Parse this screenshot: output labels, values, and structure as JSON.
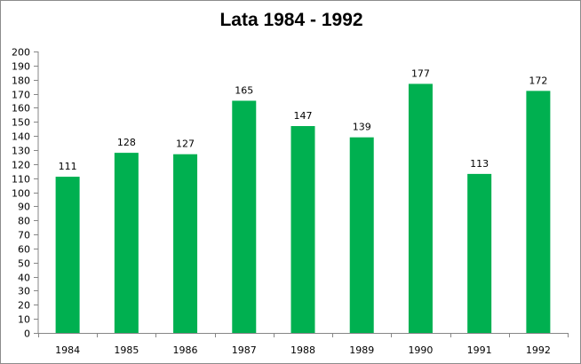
{
  "chart_data": {
    "type": "bar",
    "title": "Lata 1984 - 1992",
    "categories": [
      "1984",
      "1985",
      "1986",
      "1987",
      "1988",
      "1989",
      "1990",
      "1991",
      "1992"
    ],
    "values": [
      111,
      128,
      127,
      165,
      147,
      139,
      177,
      113,
      172
    ],
    "data_labels": [
      "111",
      "128",
      "127",
      "165",
      "147",
      "139",
      "177",
      "113",
      "172"
    ],
    "y_ticks": [
      "0",
      "10",
      "20",
      "30",
      "40",
      "50",
      "60",
      "70",
      "80",
      "90",
      "100",
      "110",
      "120",
      "130",
      "140",
      "150",
      "160",
      "170",
      "180",
      "190",
      "200"
    ],
    "xlabel": "",
    "ylabel": "",
    "ylim": [
      0,
      200
    ],
    "ystep": 10,
    "grid": false,
    "legend": "none",
    "bar_color": "#00b050",
    "axis_color": "#868686"
  }
}
